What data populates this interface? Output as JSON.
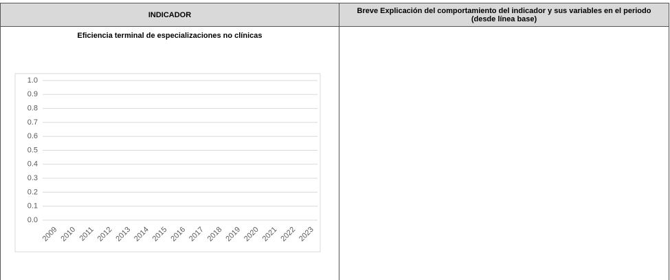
{
  "table": {
    "headers": [
      "INDICADOR",
      "Breve Explicación del comportamiento del indicador y sus variables en el periodo (desde línea base)"
    ]
  },
  "chart_data": {
    "type": "line",
    "title": "Eficiencia terminal de especializaciones no clínicas",
    "categories": [
      "2009",
      "2010",
      "2011",
      "2012",
      "2013",
      "2014",
      "2015",
      "2016",
      "2017",
      "2018",
      "2019",
      "2020",
      "2021",
      "2022",
      "2023"
    ],
    "ylim": [
      0,
      1
    ],
    "yticks": [
      {
        "value": 0,
        "label": "0.0"
      },
      {
        "value": 0.1,
        "label": "0.1"
      },
      {
        "value": 0.2,
        "label": "0.2"
      },
      {
        "value": 0.3,
        "label": "0.3"
      },
      {
        "value": 0.4,
        "label": "0.4"
      },
      {
        "value": 0.5,
        "label": "0.5"
      },
      {
        "value": 0.6,
        "label": "0.6"
      },
      {
        "value": 0.7,
        "label": "0.7"
      },
      {
        "value": 0.8,
        "label": "0.8"
      },
      {
        "value": 0.9,
        "label": "0.9"
      },
      {
        "value": 1,
        "label": "1.0"
      }
    ],
    "grid": true
  }
}
